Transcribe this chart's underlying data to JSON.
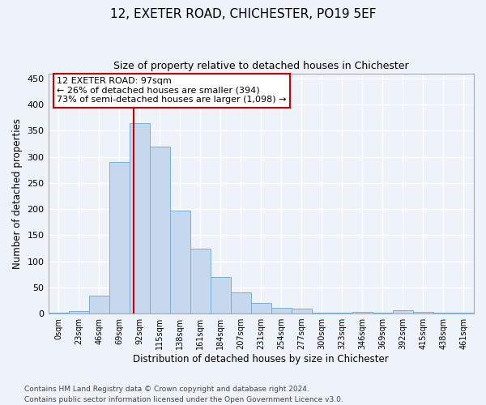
{
  "title1": "12, EXETER ROAD, CHICHESTER, PO19 5EF",
  "title2": "Size of property relative to detached houses in Chichester",
  "xlabel": "Distribution of detached houses by size in Chichester",
  "ylabel": "Number of detached properties",
  "bar_labels": [
    "0sqm",
    "23sqm",
    "46sqm",
    "69sqm",
    "92sqm",
    "115sqm",
    "138sqm",
    "161sqm",
    "184sqm",
    "207sqm",
    "231sqm",
    "254sqm",
    "277sqm",
    "300sqm",
    "323sqm",
    "346sqm",
    "369sqm",
    "392sqm",
    "415sqm",
    "438sqm",
    "461sqm"
  ],
  "bar_values": [
    2,
    5,
    35,
    290,
    365,
    320,
    197,
    125,
    70,
    40,
    21,
    11,
    10,
    1,
    1,
    4,
    1,
    6,
    4,
    2,
    1
  ],
  "bar_color": "#c5d8ed",
  "bar_edge_color": "#7aafd4",
  "annotation_line1": "12 EXETER ROAD: 97sqm",
  "annotation_line2": "← 26% of detached houses are smaller (394)",
  "annotation_line3": "73% of semi-detached houses are larger (1,098) →",
  "annotation_box_color": "#ffffff",
  "annotation_box_edge": "#cc0000",
  "vline_color": "#cc0000",
  "vline_x": 97,
  "ylim": [
    0,
    460
  ],
  "yticks": [
    0,
    50,
    100,
    150,
    200,
    250,
    300,
    350,
    400,
    450
  ],
  "footnote1": "Contains HM Land Registry data © Crown copyright and database right 2024.",
  "footnote2": "Contains public sector information licensed under the Open Government Licence v3.0.",
  "bg_color": "#eef2f9",
  "grid_color": "#ffffff",
  "bin_width": 23
}
